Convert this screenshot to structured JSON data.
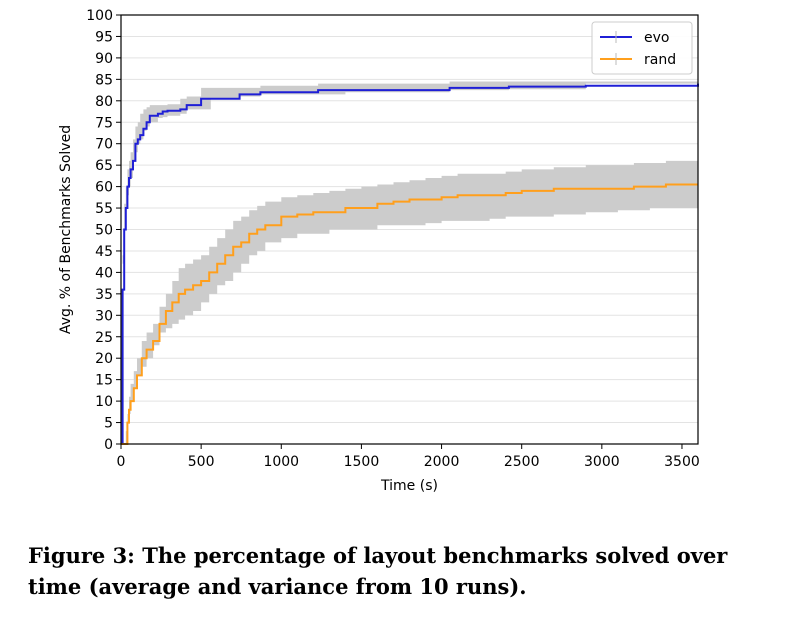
{
  "caption": "Figure 3: The percentage of layout benchmarks solved over time (average and variance from 10 runs).",
  "chart_data": {
    "type": "line",
    "title": "",
    "xlabel": "Time (s)",
    "ylabel": "Avg. % of Benchmarks Solved",
    "xlim": [
      0,
      3600
    ],
    "ylim": [
      0,
      100
    ],
    "xticks": [
      0,
      500,
      1000,
      1500,
      2000,
      2500,
      3000,
      3500
    ],
    "yticks": [
      0,
      5,
      10,
      15,
      20,
      25,
      30,
      35,
      40,
      45,
      50,
      55,
      60,
      65,
      70,
      75,
      80,
      85,
      90,
      95,
      100
    ],
    "grid": "horizontal",
    "legend_position": "top-right",
    "series": [
      {
        "name": "evo",
        "color": "#1f1fd6",
        "band_color": "#cccccc",
        "x": [
          0,
          10,
          20,
          30,
          40,
          50,
          60,
          75,
          90,
          105,
          120,
          140,
          160,
          180,
          230,
          260,
          290,
          370,
          410,
          500,
          560,
          740,
          870,
          1230,
          1400,
          2050,
          2420,
          2900,
          3600
        ],
        "y": [
          0,
          36,
          50,
          55,
          60,
          62,
          64,
          66,
          70,
          71,
          72,
          73.5,
          75,
          76.5,
          77,
          77.5,
          77.7,
          78,
          79,
          80.5,
          80.5,
          81.5,
          82,
          82.5,
          82.5,
          83,
          83.3,
          83.5,
          84
        ],
        "lower": [
          0,
          30,
          44,
          50,
          55,
          58,
          60,
          62,
          66,
          68,
          70,
          71,
          73,
          74,
          75,
          76,
          76.2,
          76.5,
          77,
          78,
          78,
          80.5,
          81,
          81.5,
          81.5,
          82,
          82.5,
          82.7,
          84
        ],
        "upper": [
          0,
          42,
          56,
          60,
          64,
          66,
          68,
          71,
          74,
          75,
          77,
          78,
          78.5,
          79,
          79,
          79,
          79.2,
          80.5,
          81,
          83,
          83,
          83,
          83.5,
          84,
          84,
          84.5,
          84.5,
          84.5,
          84
        ]
      },
      {
        "name": "rand",
        "color": "#ff9f1c",
        "band_color": "#cccccc",
        "x": [
          0,
          30,
          40,
          50,
          60,
          80,
          100,
          130,
          160,
          200,
          240,
          280,
          320,
          360,
          400,
          450,
          500,
          550,
          600,
          650,
          700,
          750,
          800,
          850,
          900,
          1000,
          1100,
          1200,
          1300,
          1400,
          1500,
          1600,
          1700,
          1800,
          1900,
          2000,
          2100,
          2200,
          2300,
          2400,
          2500,
          2600,
          2700,
          2800,
          2900,
          3000,
          3100,
          3200,
          3300,
          3400,
          3500,
          3600
        ],
        "y": [
          0,
          0,
          5,
          8,
          10,
          13,
          16,
          20,
          22,
          24,
          28,
          31,
          33,
          35,
          36,
          37,
          38,
          40,
          42,
          44,
          46,
          47,
          49,
          50,
          51,
          53,
          53.5,
          54,
          54,
          55,
          55,
          56,
          56.5,
          57,
          57,
          57.5,
          58,
          58,
          58,
          58.5,
          59,
          59,
          59.5,
          59.5,
          59.5,
          59.5,
          59.5,
          60,
          60,
          60.5,
          60.5,
          60.5
        ],
        "lower": [
          0,
          0,
          3,
          5,
          7,
          10,
          13,
          16,
          18,
          20,
          23,
          26,
          27,
          28,
          29,
          30,
          31,
          33,
          35,
          37,
          38,
          40,
          42,
          44,
          45,
          47,
          48,
          49,
          49,
          50,
          50,
          50,
          51,
          51,
          51,
          51.5,
          52,
          52,
          52,
          52.5,
          53,
          53,
          53,
          53.5,
          53.5,
          54,
          54,
          54.5,
          54.5,
          55,
          55,
          55
        ],
        "upper": [
          0,
          0,
          7,
          11,
          14,
          17,
          20,
          24,
          26,
          28,
          32,
          35,
          38,
          41,
          42,
          43,
          44,
          46,
          48,
          50,
          52,
          53,
          54.5,
          55.5,
          56.5,
          57.5,
          58,
          58.5,
          59,
          59.5,
          60,
          60.5,
          61,
          61.5,
          62,
          62.5,
          63,
          63,
          63,
          63.5,
          64,
          64,
          64.5,
          64.5,
          65,
          65,
          65,
          65.5,
          65.5,
          66,
          66,
          66
        ]
      }
    ]
  }
}
